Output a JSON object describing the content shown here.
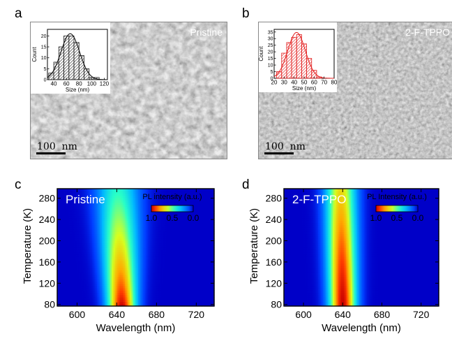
{
  "panels": {
    "a": {
      "letter": "a",
      "tag": "Pristine",
      "scale_bar": "100  nm"
    },
    "b": {
      "letter": "b",
      "tag": "2-F-TPPO",
      "scale_bar": "100  nm"
    },
    "c": {
      "letter": "c",
      "tag": "Pristine"
    },
    "d": {
      "letter": "d",
      "tag": "2-F-TPPO"
    }
  },
  "chart_data": [
    {
      "panel": "a-inset",
      "type": "bar",
      "xlabel": "Size (nm)",
      "ylabel": "Count",
      "x_ticks": [
        "40",
        "60",
        "80",
        "100",
        "120"
      ],
      "y_ticks": [
        "0",
        "5",
        "10",
        "15",
        "20"
      ],
      "xlim": [
        30,
        125
      ],
      "ylim": [
        0,
        23
      ],
      "bin_width": 8,
      "bins": [
        36,
        44,
        52,
        60,
        68,
        76,
        84,
        92,
        100,
        108
      ],
      "values": [
        3,
        8,
        15,
        20,
        20,
        17,
        11,
        5,
        1,
        1
      ],
      "fit_curve": "gaussian",
      "colors": {
        "bar_stroke": "#222222",
        "fit": "#000000"
      }
    },
    {
      "panel": "b-inset",
      "type": "bar",
      "xlabel": "Size (nm)",
      "ylabel": "Count",
      "x_ticks": [
        "20",
        "30",
        "40",
        "50",
        "60",
        "70",
        "80"
      ],
      "y_ticks": [
        "0",
        "5",
        "10",
        "15",
        "20",
        "25",
        "30",
        "35"
      ],
      "xlim": [
        20,
        80
      ],
      "ylim": [
        0,
        37
      ],
      "bin_width": 5,
      "bins": [
        25,
        30,
        35,
        40,
        45,
        50,
        55,
        60,
        65
      ],
      "values": [
        5,
        19,
        27,
        31,
        33,
        26,
        15,
        6,
        1
      ],
      "fit_curve": "gaussian",
      "colors": {
        "bar_stroke": "#e21b1b",
        "fit": "#e21b1b"
      }
    },
    {
      "panel": "c",
      "type": "heatmap",
      "xlabel": "Wavelength (nm)",
      "ylabel": "Temperature (K)",
      "x_ticks": [
        "600",
        "640",
        "680",
        "720"
      ],
      "y_ticks": [
        "80",
        "120",
        "160",
        "200",
        "240",
        "280"
      ],
      "xlim": [
        580,
        738
      ],
      "ylim": [
        77,
        298
      ],
      "peak_wavelength_at_80K": 645,
      "peak_wavelength_at_290K": 641,
      "width_at_80K": 10,
      "width_at_290K": 15,
      "colorbar": {
        "title": "PL intensity (a.u.)",
        "labels": [
          "1.0",
          "0.5",
          "0.0"
        ]
      }
    },
    {
      "panel": "d",
      "type": "heatmap",
      "xlabel": "Wavelength (nm)",
      "ylabel": "Temperature (K)",
      "x_ticks": [
        "600",
        "640",
        "680",
        "720"
      ],
      "y_ticks": [
        "80",
        "120",
        "160",
        "200",
        "240",
        "280"
      ],
      "xlim": [
        580,
        738
      ],
      "ylim": [
        77,
        298
      ],
      "peak_wavelength_at_80K": 640,
      "peak_wavelength_at_290K": 638,
      "width_at_80K": 9.5,
      "width_at_290K": 11,
      "colorbar": {
        "title": "PL Intensity (a.u.)",
        "labels": [
          "1.0",
          "0.5",
          "0.0"
        ]
      }
    }
  ]
}
